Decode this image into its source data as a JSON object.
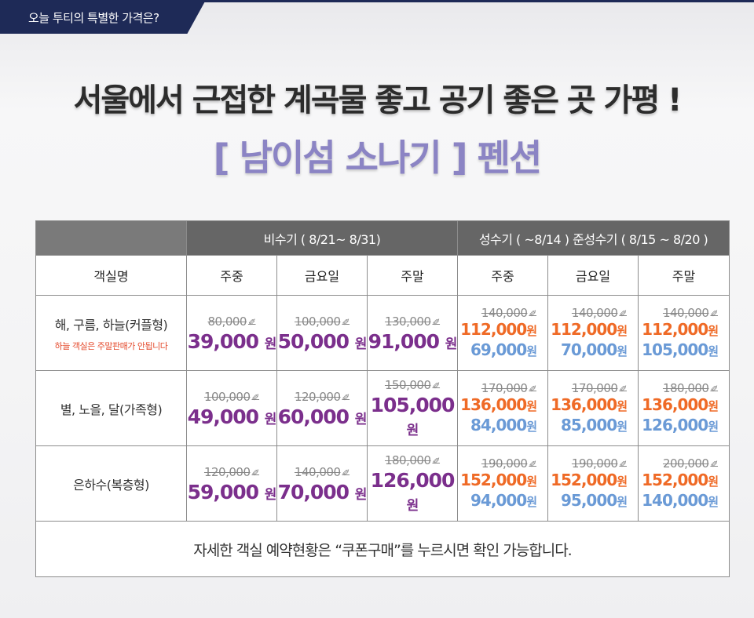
{
  "badge": "오늘 투티의 특별한 가격은?",
  "headline": "서울에서 근접한 계곡물 좋고 공기 좋은 곳 가평 !",
  "subheadline": "[ 남이섬 소나기 ] 펜션",
  "table": {
    "group_offpeak": "비수기 ( 8/21~ 8/31)",
    "group_peak": "성수기 ( ~8/14 )   준성수기 ( 8/15 ~ 8/20 )",
    "col_room": "객실명",
    "cols": [
      "주중",
      "금요일",
      "주말",
      "주중",
      "금요일",
      "주말"
    ],
    "currency": "원",
    "rows": [
      {
        "name": "해, 구름, 하늘(커플형)",
        "note": "하늘 객실은 주말판매가 안됩니다",
        "offpeak": [
          {
            "old": "80,000",
            "price": "39,000"
          },
          {
            "old": "100,000",
            "price": "50,000"
          },
          {
            "old": "130,000",
            "price": "91,000"
          }
        ],
        "peak": [
          {
            "old": "140,000",
            "peak": "112,000",
            "semi": "69,000"
          },
          {
            "old": "140,000",
            "peak": "112,000",
            "semi": "70,000"
          },
          {
            "old": "140,000",
            "peak": "112,000",
            "semi": "105,000"
          }
        ]
      },
      {
        "name": "별, 노을, 달(가족형)",
        "note": "",
        "offpeak": [
          {
            "old": "100,000",
            "price": "49,000"
          },
          {
            "old": "120,000",
            "price": "60,000"
          },
          {
            "old": "150,000",
            "price": "105,000"
          }
        ],
        "peak": [
          {
            "old": "170,000",
            "peak": "136,000",
            "semi": "84,000"
          },
          {
            "old": "170,000",
            "peak": "136,000",
            "semi": "85,000"
          },
          {
            "old": "180,000",
            "peak": "136,000",
            "semi": "126,000"
          }
        ]
      },
      {
        "name": "은하수(복층형)",
        "note": "",
        "offpeak": [
          {
            "old": "120,000",
            "price": "59,000"
          },
          {
            "old": "140,000",
            "price": "70,000"
          },
          {
            "old": "180,000",
            "price": "126,000"
          }
        ],
        "peak": [
          {
            "old": "190,000",
            "peak": "152,000",
            "semi": "94,000"
          },
          {
            "old": "190,000",
            "peak": "152,000",
            "semi": "95,000"
          },
          {
            "old": "200,000",
            "peak": "152,000",
            "semi": "140,000"
          }
        ]
      }
    ],
    "footer": "자세한 객실 예약현황은 “쿠폰구매”를 누르시면 확인 가능합니다."
  },
  "colors": {
    "navy": "#1e2a57",
    "lavender": "#8b84c4",
    "purple": "#7b2f8c",
    "orange": "#ef6a26",
    "blue": "#6a9ad6"
  }
}
